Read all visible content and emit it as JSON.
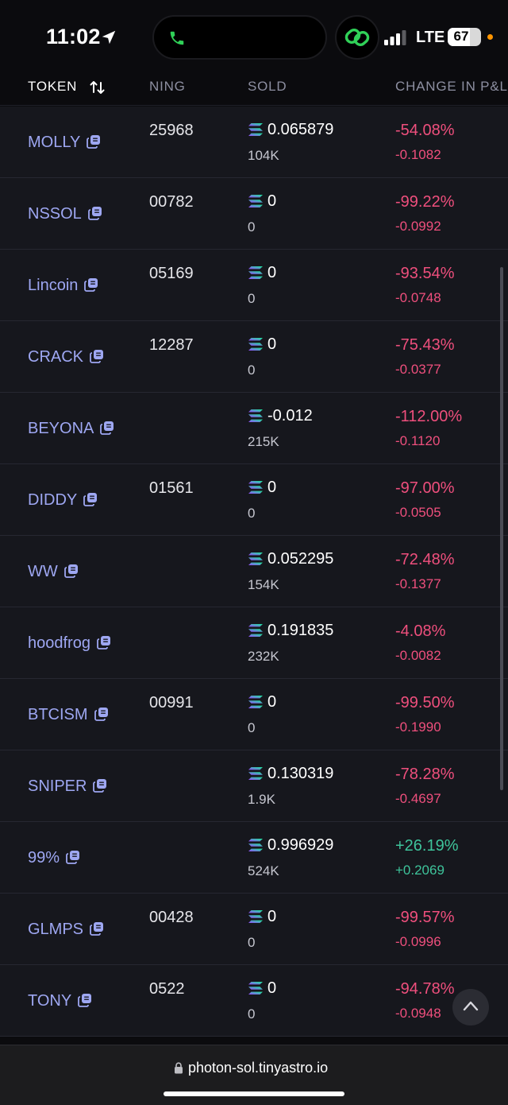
{
  "status_bar": {
    "time": "11:02",
    "network": "LTE",
    "battery_level": "67",
    "battery_fraction": 0.67
  },
  "table": {
    "headers": {
      "token": "TOKEN",
      "remaining": "NING",
      "sold": "SOLD",
      "change": "CHANGE IN P&L"
    },
    "rows": [
      {
        "token": "MOLLY",
        "remaining": "25968",
        "sold": "0.065879",
        "sold_sub": "104K",
        "change_pct": "-54.08%",
        "change_val": "-0.1082",
        "trend": "down"
      },
      {
        "token": "NSSOL",
        "remaining": "00782",
        "sold": "0",
        "sold_sub": "0",
        "change_pct": "-99.22%",
        "change_val": "-0.0992",
        "trend": "down"
      },
      {
        "token": "Lincoin",
        "remaining": "05169",
        "sold": "0",
        "sold_sub": "0",
        "change_pct": "-93.54%",
        "change_val": "-0.0748",
        "trend": "down"
      },
      {
        "token": "CRACK",
        "remaining": "12287",
        "sold": "0",
        "sold_sub": "0",
        "change_pct": "-75.43%",
        "change_val": "-0.0377",
        "trend": "down"
      },
      {
        "token": "BEYONA",
        "remaining": "",
        "sold": "-0.012",
        "sold_sub": "215K",
        "change_pct": "-112.00%",
        "change_val": "-0.1120",
        "trend": "down"
      },
      {
        "token": "DIDDY",
        "remaining": "01561",
        "sold": "0",
        "sold_sub": "0",
        "change_pct": "-97.00%",
        "change_val": "-0.0505",
        "trend": "down"
      },
      {
        "token": "WW",
        "remaining": "",
        "sold": "0.052295",
        "sold_sub": "154K",
        "change_pct": "-72.48%",
        "change_val": "-0.1377",
        "trend": "down"
      },
      {
        "token": "hoodfrog",
        "remaining": "",
        "sold": "0.191835",
        "sold_sub": "232K",
        "change_pct": "-4.08%",
        "change_val": "-0.0082",
        "trend": "down"
      },
      {
        "token": "BTCISM",
        "remaining": "00991",
        "sold": "0",
        "sold_sub": "0",
        "change_pct": "-99.50%",
        "change_val": "-0.1990",
        "trend": "down"
      },
      {
        "token": "SNIPER",
        "remaining": "",
        "sold": "0.130319",
        "sold_sub": "1.9K",
        "change_pct": "-78.28%",
        "change_val": "-0.4697",
        "trend": "down"
      },
      {
        "token": "99%",
        "remaining": "",
        "sold": "0.996929",
        "sold_sub": "524K",
        "change_pct": "+26.19%",
        "change_val": "+0.2069",
        "trend": "up"
      },
      {
        "token": "GLMPS",
        "remaining": "00428",
        "sold": "0",
        "sold_sub": "0",
        "change_pct": "-99.57%",
        "change_val": "-0.0996",
        "trend": "down"
      },
      {
        "token": "TONY",
        "remaining": "0522",
        "sold": "0",
        "sold_sub": "0",
        "change_pct": "-94.78%",
        "change_val": "-0.0948",
        "trend": "down"
      }
    ]
  },
  "browser": {
    "url": "photon-sol.tinyastro.io"
  },
  "icons": {
    "location": "location-arrow-icon",
    "call": "phone-icon",
    "link": "link-icon",
    "sort": "sort-icon",
    "copy": "copy-icon",
    "currency": "solana-icon",
    "scroll_top": "chevron-up-icon",
    "lock": "lock-icon"
  },
  "colors": {
    "token": "#9ea7f2",
    "negative": "#ef4f7d",
    "positive": "#3ec49b",
    "row_bg": "#16171d",
    "call_green": "#30d158"
  }
}
